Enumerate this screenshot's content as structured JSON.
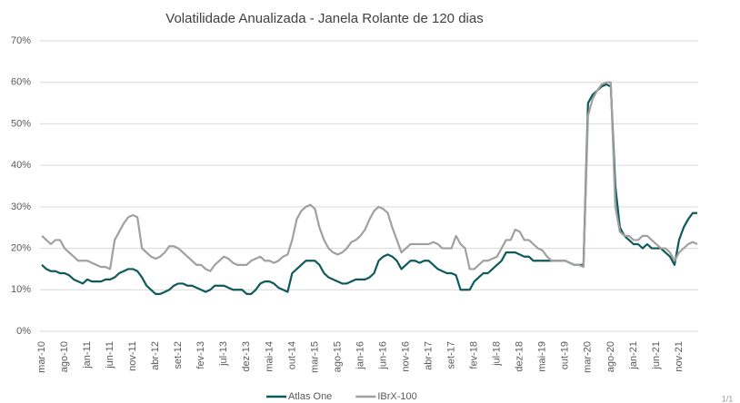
{
  "chart_data": {
    "type": "line",
    "title": "Volatilidade Anualizada - Janela Rolante de 120 dias",
    "categories": [
      "mar-10",
      null,
      null,
      null,
      null,
      "ago-10",
      null,
      null,
      null,
      null,
      "jan-11",
      null,
      null,
      null,
      null,
      "jun-11",
      null,
      null,
      null,
      null,
      "nov-11",
      null,
      null,
      null,
      null,
      "abr-12",
      null,
      null,
      null,
      null,
      "set-12",
      null,
      null,
      null,
      null,
      "fev-13",
      null,
      null,
      null,
      null,
      "jul-13",
      null,
      null,
      null,
      null,
      "dez-13",
      null,
      null,
      null,
      null,
      "mai-14",
      null,
      null,
      null,
      null,
      "out-14",
      null,
      null,
      null,
      null,
      "mar-15",
      null,
      null,
      null,
      null,
      "ago-15",
      null,
      null,
      null,
      null,
      "jan-16",
      null,
      null,
      null,
      null,
      "jun-16",
      null,
      null,
      null,
      null,
      "nov-16",
      null,
      null,
      null,
      null,
      "abr-17",
      null,
      null,
      null,
      null,
      "set-17",
      null,
      null,
      null,
      null,
      "fev-18",
      null,
      null,
      null,
      null,
      "jul-18",
      null,
      null,
      null,
      null,
      "dez-18",
      null,
      null,
      null,
      null,
      "mai-19",
      null,
      null,
      null,
      null,
      "out-19",
      null,
      null,
      null,
      null,
      "mar-20",
      null,
      null,
      null,
      null,
      "ago-20",
      null,
      null,
      null,
      null,
      "jan-21",
      null,
      null,
      null,
      null,
      "jun-21",
      null,
      null,
      null,
      null,
      "nov-21",
      null,
      null,
      null,
      null
    ],
    "series": [
      {
        "name": "Atlas One",
        "color": "#0e5a5a",
        "values": [
          16,
          15,
          14.5,
          14.5,
          14,
          14,
          13.5,
          12.5,
          12,
          11.5,
          12.5,
          12,
          12,
          12,
          12.5,
          12.5,
          13,
          14,
          14.5,
          15,
          15,
          14.5,
          13,
          11,
          10,
          9,
          9,
          9.5,
          10,
          11,
          11.5,
          11.5,
          11,
          11,
          10.5,
          10,
          9.5,
          10,
          11,
          11,
          11,
          10.5,
          10,
          10,
          10,
          9,
          9,
          10,
          11.5,
          12,
          12,
          11.5,
          10.5,
          10,
          9.5,
          14,
          15,
          16,
          17,
          17,
          17,
          16,
          14,
          13,
          12.5,
          12,
          11.5,
          11.5,
          12,
          12.5,
          12.5,
          12.5,
          13,
          14,
          17,
          18,
          18.5,
          18,
          17,
          15,
          16,
          17,
          17,
          16.5,
          17,
          17,
          16,
          15,
          14.5,
          14,
          14,
          13.5,
          10,
          10,
          10,
          12,
          13,
          14,
          14,
          15,
          16,
          17,
          19,
          19,
          19,
          18.5,
          18,
          18,
          17,
          17,
          17,
          17,
          17,
          17,
          17,
          17,
          16.5,
          16,
          16,
          16,
          55,
          57,
          58,
          59,
          59.5,
          59,
          35,
          25,
          23,
          22,
          21,
          21,
          20,
          21,
          20,
          20,
          20,
          19,
          18,
          16,
          22,
          25,
          27,
          28.5,
          28.5
        ]
      },
      {
        "name": "IBrX-100",
        "color": "#a0a0a0",
        "values": [
          23,
          22,
          21,
          22,
          22,
          20,
          19,
          18,
          17,
          17,
          17,
          16.5,
          16,
          15.5,
          15.5,
          15,
          22,
          24,
          26,
          27.5,
          28,
          27.5,
          20,
          19,
          18,
          17.5,
          18,
          19,
          20.5,
          20.5,
          20,
          19,
          18,
          17,
          16,
          16,
          15,
          14.5,
          16,
          17,
          18,
          17.5,
          16.5,
          16,
          16,
          16,
          17,
          17.5,
          18,
          17,
          17,
          16.5,
          17,
          18,
          18.5,
          22,
          27,
          29,
          30,
          30.5,
          29.5,
          25,
          22,
          20,
          19,
          18.5,
          19,
          20,
          21.5,
          22,
          23,
          24.5,
          27,
          29,
          30,
          29.5,
          28.5,
          25,
          22,
          19,
          20,
          21,
          21,
          21,
          21,
          21,
          21.5,
          21,
          20,
          20,
          20,
          23,
          21,
          20,
          15,
          15,
          16,
          17,
          17,
          17.5,
          18,
          20,
          22,
          22,
          24.5,
          24,
          22,
          22,
          21,
          20,
          19.5,
          18,
          17,
          17,
          17,
          17,
          16.5,
          16,
          16,
          15.5,
          52,
          56,
          58,
          59.5,
          60,
          60,
          30,
          24,
          23,
          23,
          22,
          22,
          23,
          23,
          22,
          21,
          20,
          20,
          19,
          17,
          19,
          20,
          21,
          21.5,
          21
        ]
      }
    ],
    "ylim": [
      0,
      70
    ],
    "yticks": [
      {
        "value": 0,
        "label": "0%"
      },
      {
        "value": 10,
        "label": "10%"
      },
      {
        "value": 20,
        "label": "20%"
      },
      {
        "value": 30,
        "label": "30%"
      },
      {
        "value": 40,
        "label": "40%"
      },
      {
        "value": 50,
        "label": "50%"
      },
      {
        "value": 60,
        "label": "60%"
      },
      {
        "value": 70,
        "label": "70%"
      }
    ],
    "grid": true,
    "legend": "bottom"
  },
  "page_indicator": "1/1"
}
